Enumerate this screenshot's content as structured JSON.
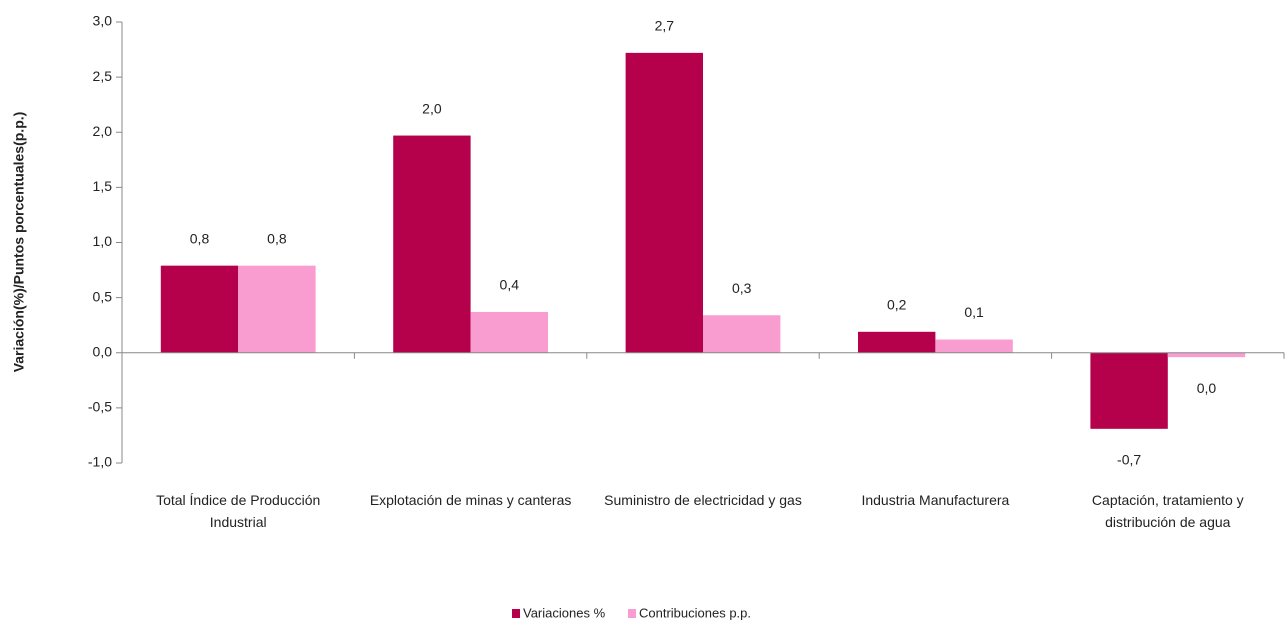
{
  "chart_data": {
    "type": "bar",
    "y_label": "Variación(%)/Puntos porcentuales(p.p.)",
    "categories": [
      "Total Índice de Producción Industrial",
      "Explotación de minas y canteras",
      "Suministro de electricidad y gas",
      "Industria Manufacturera",
      "Captación, tratamiento y distribución de agua"
    ],
    "series": [
      {
        "name": "Variaciones %",
        "color": "#b5004b",
        "values": [
          0.79,
          1.97,
          2.72,
          0.19,
          -0.69
        ],
        "value_labels": [
          "0,8",
          "2,0",
          "2,7",
          "0,2",
          "-0,7"
        ]
      },
      {
        "name": "Contribuciones p.p.",
        "color": "#f99ccf",
        "values": [
          0.79,
          0.37,
          0.34,
          0.12,
          -0.04
        ],
        "value_labels": [
          "0,8",
          "0,4",
          "0,3",
          "0,1",
          "0,0"
        ]
      }
    ],
    "ylim": [
      -1,
      3
    ],
    "yticks": [
      {
        "value": -1,
        "label": "-1,0"
      },
      {
        "value": -0.5,
        "label": "-0,5"
      },
      {
        "value": 0,
        "label": "0,0"
      },
      {
        "value": 0.5,
        "label": "0,5"
      },
      {
        "value": 1,
        "label": "1,0"
      },
      {
        "value": 1.5,
        "label": "1,5"
      },
      {
        "value": 2,
        "label": "2,0"
      },
      {
        "value": 2.5,
        "label": "2,5"
      },
      {
        "value": 3,
        "label": "3,0"
      }
    ],
    "legend": "bottom"
  }
}
